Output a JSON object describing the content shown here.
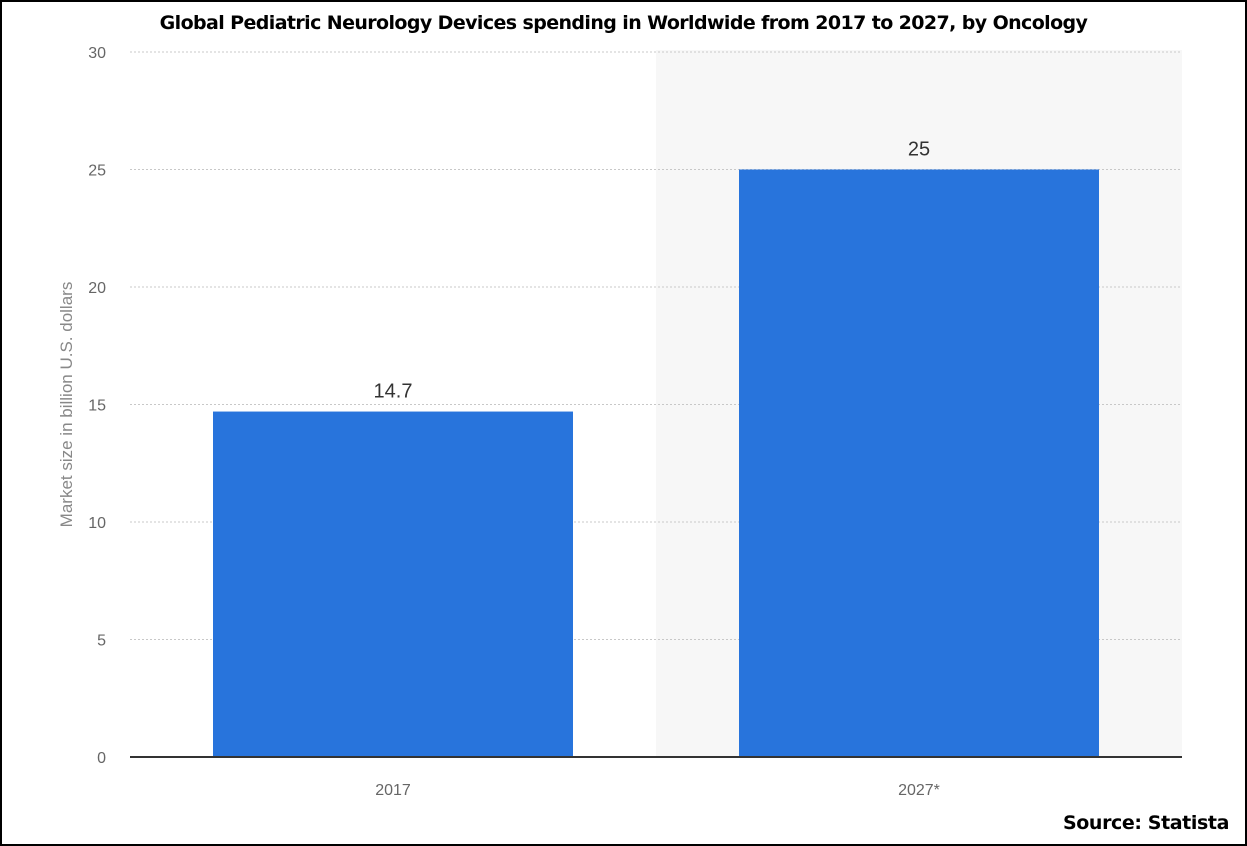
{
  "chart_data": {
    "type": "bar",
    "title": "Global Pediatric Neurology Devices spending in Worldwide from 2017 to 2027, by Oncology",
    "categories": [
      "2017",
      "2027*"
    ],
    "values": [
      14.7,
      25
    ],
    "data_labels": [
      "14.7",
      "25"
    ],
    "xlabel": "",
    "ylabel": "Market size in billion U.S. dollars",
    "ylim": [
      0,
      30
    ],
    "yticks": [
      0,
      5,
      10,
      15,
      20,
      25,
      30
    ],
    "ytick_labels": [
      "0",
      "5",
      "10",
      "15",
      "20",
      "25",
      "30"
    ],
    "grid": true,
    "legend": "none",
    "bar_color": "#2874dc",
    "forecast_band_color": "#f7f7f7"
  },
  "source": "Source: Statista"
}
